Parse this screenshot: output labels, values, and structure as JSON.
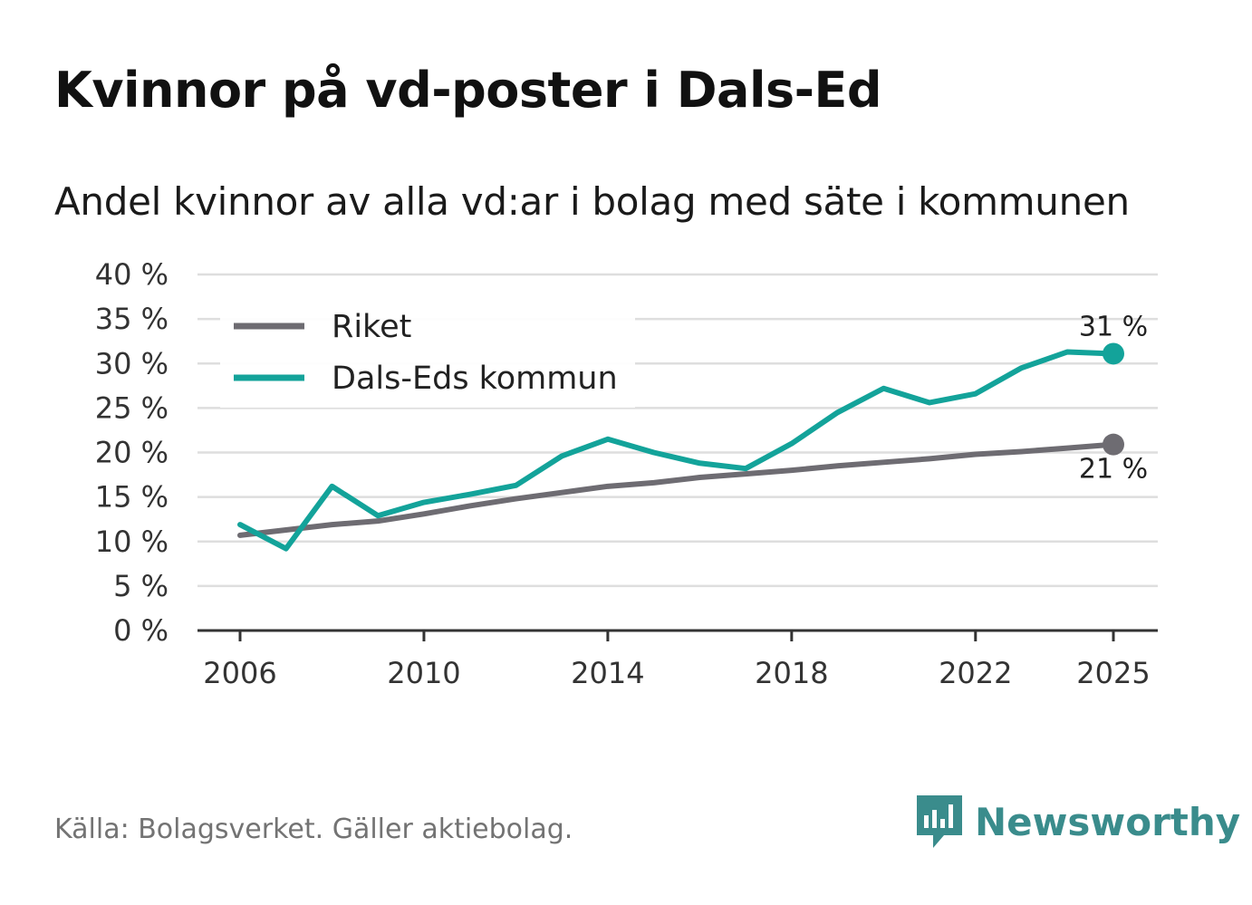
{
  "title": "Kvinnor på vd-poster i Dals-Ed",
  "subtitle": "Andel kvinnor av alla vd:ar i bolag med säte i kommunen",
  "source": "Källa: Bolagsverket. Gäller aktiebolag.",
  "brand": {
    "name": "Newsworthy",
    "icon": "newsworthy-logo-icon",
    "color": "#3a8c8c"
  },
  "chart_data": {
    "type": "line",
    "x": [
      2006,
      2007,
      2008,
      2009,
      2010,
      2011,
      2012,
      2013,
      2014,
      2015,
      2016,
      2017,
      2018,
      2019,
      2020,
      2021,
      2022,
      2023,
      2024,
      2025
    ],
    "series": [
      {
        "name": "Riket",
        "color": "#6e6c72",
        "values": [
          10.7,
          11.3,
          11.9,
          12.3,
          13.1,
          14.0,
          14.8,
          15.5,
          16.2,
          16.6,
          17.2,
          17.6,
          18.0,
          18.5,
          18.9,
          19.3,
          19.8,
          20.1,
          20.5,
          20.9
        ],
        "end_label": "21 %"
      },
      {
        "name": "Dals-Eds kommun",
        "color": "#13a39a",
        "values": [
          11.9,
          9.2,
          16.2,
          12.9,
          14.4,
          15.3,
          16.3,
          19.6,
          21.5,
          20.0,
          18.8,
          18.2,
          21.0,
          24.5,
          27.2,
          25.6,
          26.6,
          29.5,
          31.3,
          31.1
        ],
        "end_label": "31 %"
      }
    ],
    "y_ticks": [
      "0 %",
      "5 %",
      "10 %",
      "15 %",
      "20 %",
      "25 %",
      "30 %",
      "35 %",
      "40 %"
    ],
    "y_tick_values": [
      0,
      5,
      10,
      15,
      20,
      25,
      30,
      35,
      40
    ],
    "x_tick_labels": [
      "2006",
      "2010",
      "2014",
      "2018",
      "2022",
      "2025"
    ],
    "ylim": [
      0,
      40
    ],
    "xlim": [
      2006,
      2025
    ],
    "grid": true,
    "legend_position": "top-left",
    "xlabel": "",
    "ylabel": ""
  }
}
